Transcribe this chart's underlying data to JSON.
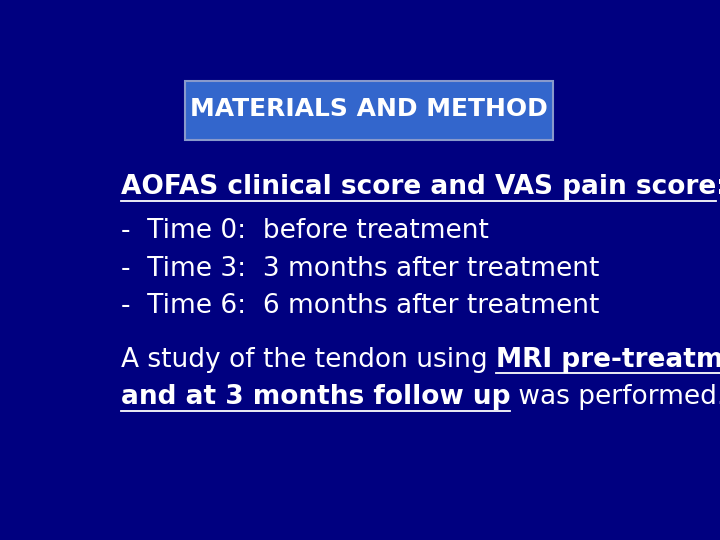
{
  "bg_color": "#000080",
  "title_box_color": "#3366cc",
  "title_text": "MATERIALS AND METHOD",
  "title_text_color": "#ffffff",
  "title_fontsize": 18,
  "body_text_color": "#ffffff",
  "body_fontsize": 19,
  "line1_normal": "AOFAS clinical score and VAS pain score",
  "line1_colon": ":",
  "line2": "-  Time 0:  before treatment",
  "line3": "-  Time 3:  3 months after treatment",
  "line4": "-  Time 6:  6 months after treatment",
  "line5_pre": "A study of the tendon using ",
  "line5_bold_underline": "MRI pre-treatment",
  "line6_bold_underline": "and at 3 months follow up",
  "line6_normal": " was performed."
}
